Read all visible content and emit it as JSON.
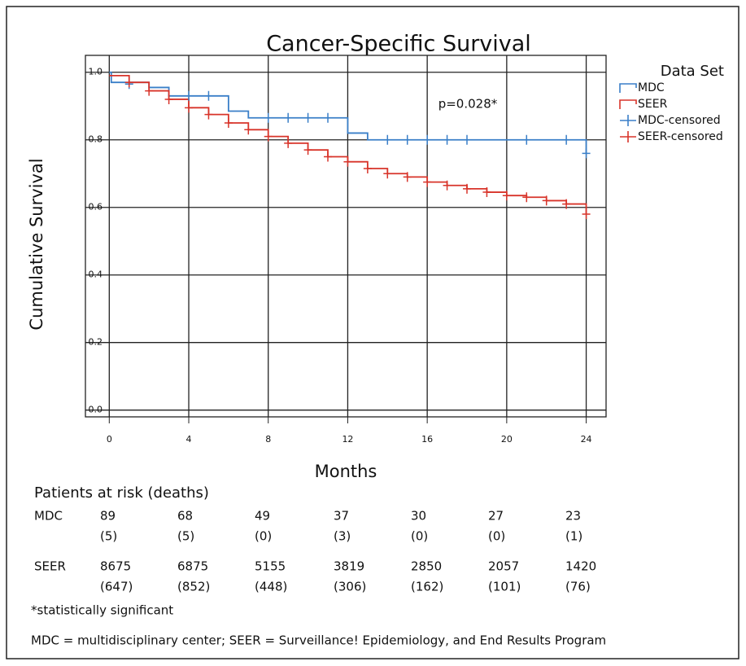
{
  "chart_data": {
    "type": "step",
    "title": "Cancer-Specific Survival",
    "x_label": "Months",
    "y_label": "Cumulative Survival",
    "annotation": "p=0.028*",
    "legend_title": "Data Set",
    "legend": "right",
    "grid": true,
    "xlim": [
      -1.2,
      25
    ],
    "ylim": [
      -0.02,
      1.05
    ],
    "xticks": [
      0,
      4,
      8,
      12,
      16,
      20,
      24
    ],
    "yticks": [
      {
        "value": 0,
        "label": "0.0"
      },
      0.2,
      0.4,
      0.6,
      0.8,
      {
        "value": 1,
        "label": "1.0"
      }
    ],
    "series": [
      {
        "name": "MDC",
        "color": "#3a7fc8",
        "kind": "step",
        "x": [
          0,
          0.1,
          2,
          3,
          6,
          7,
          12,
          13,
          24
        ],
        "values": [
          1.0,
          0.97,
          0.955,
          0.93,
          0.885,
          0.865,
          0.82,
          0.8,
          0.76
        ]
      },
      {
        "name": "SEER",
        "color": "#d8342a",
        "kind": "step",
        "x": [
          0,
          1,
          2,
          3,
          4,
          5,
          6,
          7,
          8,
          9,
          10,
          11,
          12,
          13,
          14,
          15,
          16,
          17,
          18,
          19,
          20,
          21,
          22,
          23,
          24
        ],
        "values": [
          0.99,
          0.97,
          0.945,
          0.92,
          0.895,
          0.875,
          0.85,
          0.83,
          0.81,
          0.79,
          0.77,
          0.75,
          0.735,
          0.715,
          0.7,
          0.69,
          0.675,
          0.665,
          0.655,
          0.645,
          0.635,
          0.63,
          0.62,
          0.61,
          0.58
        ]
      },
      {
        "name": "MDC-censored",
        "color": "#3a7fc8",
        "kind": "censor",
        "x": [
          1,
          4,
          5,
          8,
          9,
          10,
          11,
          14,
          15,
          16,
          17,
          18,
          21,
          23,
          24
        ],
        "values": [
          0.965,
          0.93,
          0.93,
          0.865,
          0.865,
          0.865,
          0.865,
          0.8,
          0.8,
          0.8,
          0.8,
          0.8,
          0.8,
          0.8,
          0.76
        ]
      },
      {
        "name": "SEER-censored",
        "color": "#d8342a",
        "kind": "censor",
        "x": [
          1,
          2,
          3,
          4,
          5,
          6,
          7,
          8,
          9,
          10,
          11,
          12,
          13,
          14,
          15,
          16,
          17,
          18,
          19,
          20,
          21,
          22,
          23,
          24
        ],
        "values": [
          0.97,
          0.945,
          0.92,
          0.895,
          0.875,
          0.85,
          0.83,
          0.81,
          0.79,
          0.77,
          0.75,
          0.735,
          0.715,
          0.7,
          0.69,
          0.675,
          0.665,
          0.655,
          0.645,
          0.635,
          0.63,
          0.62,
          0.61,
          0.58
        ]
      }
    ]
  },
  "risk_table": {
    "title": "Patients at risk (deaths)",
    "rows": [
      {
        "label": "MDC",
        "at_risk": [
          "89",
          "68",
          "49",
          "37",
          "30",
          "27",
          "23"
        ],
        "deaths": [
          "(5)",
          "(5)",
          "(0)",
          "(3)",
          "(0)",
          "(0)",
          "(1)"
        ]
      },
      {
        "label": "SEER",
        "at_risk": [
          "8675",
          "6875",
          "5155",
          "3819",
          "2850",
          "2057",
          "1420"
        ],
        "deaths": [
          "(647)",
          "(852)",
          "(448)",
          "(306)",
          "(162)",
          "(101)",
          "(76)"
        ]
      }
    ]
  },
  "footnotes": [
    "*statistically significant",
    "MDC = multidisciplinary center; SEER = Surveillance! Epidemiology, and End Results Program"
  ]
}
